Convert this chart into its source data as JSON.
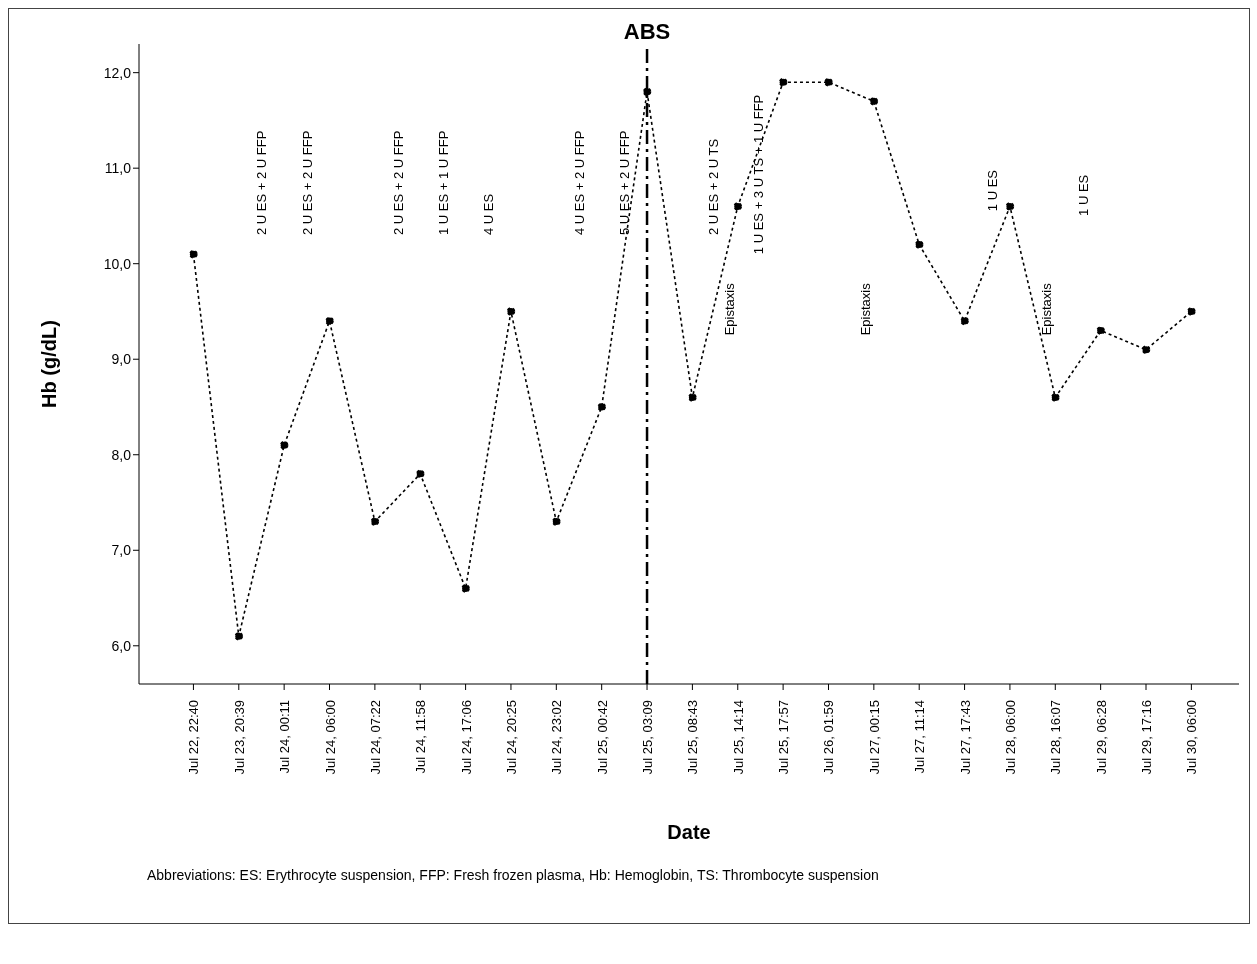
{
  "chart_data": {
    "type": "line",
    "xlabel": "Date",
    "ylabel": "Hb (g/dL)",
    "categories": [
      "Jul 22, 22:40",
      "Jul 23, 20:39",
      "Jul 24, 00:11",
      "Jul 24, 06:00",
      "Jul 24, 07:22",
      "Jul 24, 11:58",
      "Jul 24, 17:06",
      "Jul 24, 20:25",
      "Jul 24, 23:02",
      "Jul 25, 00:42",
      "Jul 25, 03:09",
      "Jul 25, 08:43",
      "Jul 25, 14:14",
      "Jul 25, 17:57",
      "Jul 26, 01:59",
      "Jul 27, 00:15",
      "Jul 27, 11:14",
      "Jul 27, 17:43",
      "Jul 28, 06:00",
      "Jul 28, 16:07",
      "Jul 29, 06:28",
      "Jul 29, 17:16",
      "Jul 30, 06:00"
    ],
    "series": [
      {
        "color": "#000000",
        "values": [
          10.1,
          6.1,
          8.1,
          9.4,
          7.3,
          7.8,
          6.6,
          9.5,
          7.3,
          8.5,
          11.8,
          8.6,
          10.6,
          11.9,
          11.9,
          11.7,
          10.2,
          9.4,
          10.6,
          8.6,
          9.3,
          9.1,
          9.5
        ]
      }
    ],
    "ylim": [
      5.6,
      12.3
    ],
    "yticks": [
      {
        "value": 6,
        "label": "6,0"
      },
      {
        "value": 7,
        "label": "7,0"
      },
      {
        "value": 8,
        "label": "8,0"
      },
      {
        "value": 9,
        "label": "9,0"
      },
      {
        "value": 10,
        "label": "10,0"
      },
      {
        "value": 11,
        "label": "11,0"
      },
      {
        "value": 12,
        "label": "12,0"
      }
    ],
    "marker": "circle",
    "line_style": "dotted",
    "grid": false,
    "legend": false,
    "ref_lines": [
      {
        "axis": "x",
        "value": "Jul 25, 03:09",
        "label": "ABS",
        "line_style": "dashed",
        "color": "#000000"
      }
    ],
    "annotations": [
      "2 U ES + 2 U FFP",
      "2 U ES + 2 U FFP",
      "2 U ES + 2 U FFP",
      "1 U ES + 1 U FFP",
      "4 U ES",
      "4 U ES + 2 U FFP",
      "5 U ES + 2 U FFP",
      "2 U ES + 2 U TS",
      "Epistaxis",
      "1 U ES + 3 U TS + 1 U FFP",
      "Epistaxis",
      "1 U ES",
      "Epistaxis",
      "1 U ES",
      "Abbreviations: ES: Erythrocyte suspension, FFP: Fresh frozen plasma, Hb: Hemoglobin, TS: Thrombocyte suspension"
    ]
  }
}
